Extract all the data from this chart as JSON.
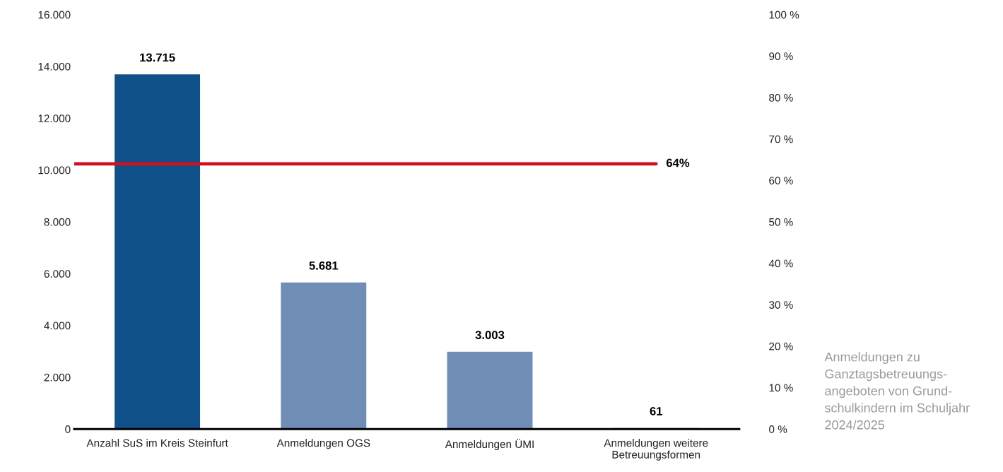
{
  "chart_data": {
    "type": "bar",
    "categories": [
      "Anzahl SuS im Kreis Steinfurt",
      "Anmeldungen OGS",
      "Anmeldungen ÜMI",
      "Anmeldungen weitere\nBetreuungsformen"
    ],
    "values": [
      13715,
      5681,
      3003,
      61
    ],
    "value_labels": [
      "13.715",
      "5.681",
      "3.003",
      "61"
    ],
    "colors": [
      "#0f5188",
      "#708dB5",
      "#708db5",
      "#708db5"
    ],
    "ylim": [
      0,
      16000
    ],
    "yticks": [
      {
        "value": 0,
        "label": "0"
      },
      {
        "value": 2000,
        "label": "2.000"
      },
      {
        "value": 4000,
        "label": "4.000"
      },
      {
        "value": 6000,
        "label": "6.000"
      },
      {
        "value": 8000,
        "label": "8.000"
      },
      {
        "value": 10000,
        "label": "10.000"
      },
      {
        "value": 12000,
        "label": "12.000"
      },
      {
        "value": 14000,
        "label": "14.000"
      },
      {
        "value": 16000,
        "label": "16.000"
      }
    ],
    "y2lim": [
      0,
      100
    ],
    "y2ticks": [
      {
        "value": 0,
        "label": "0 %"
      },
      {
        "value": 10,
        "label": "10 %"
      },
      {
        "value": 20,
        "label": "20 %"
      },
      {
        "value": 30,
        "label": "30 %"
      },
      {
        "value": 40,
        "label": "40 %"
      },
      {
        "value": 50,
        "label": "50 %"
      },
      {
        "value": 60,
        "label": "60 %"
      },
      {
        "value": 70,
        "label": "70 %"
      },
      {
        "value": 80,
        "label": "80 %"
      },
      {
        "value": 90,
        "label": "90 %"
      },
      {
        "value": 100,
        "label": "100 %"
      }
    ],
    "ref_lines": [
      {
        "axis": "y2",
        "value": 64,
        "label": "64%",
        "color": "#d0101e"
      }
    ],
    "annotations": [
      "Anmeldungen zu\nGanztagsbetreuungs-\nangeboten von Grund-\nschulkindern im Schuljahr\n2024/2025"
    ]
  }
}
